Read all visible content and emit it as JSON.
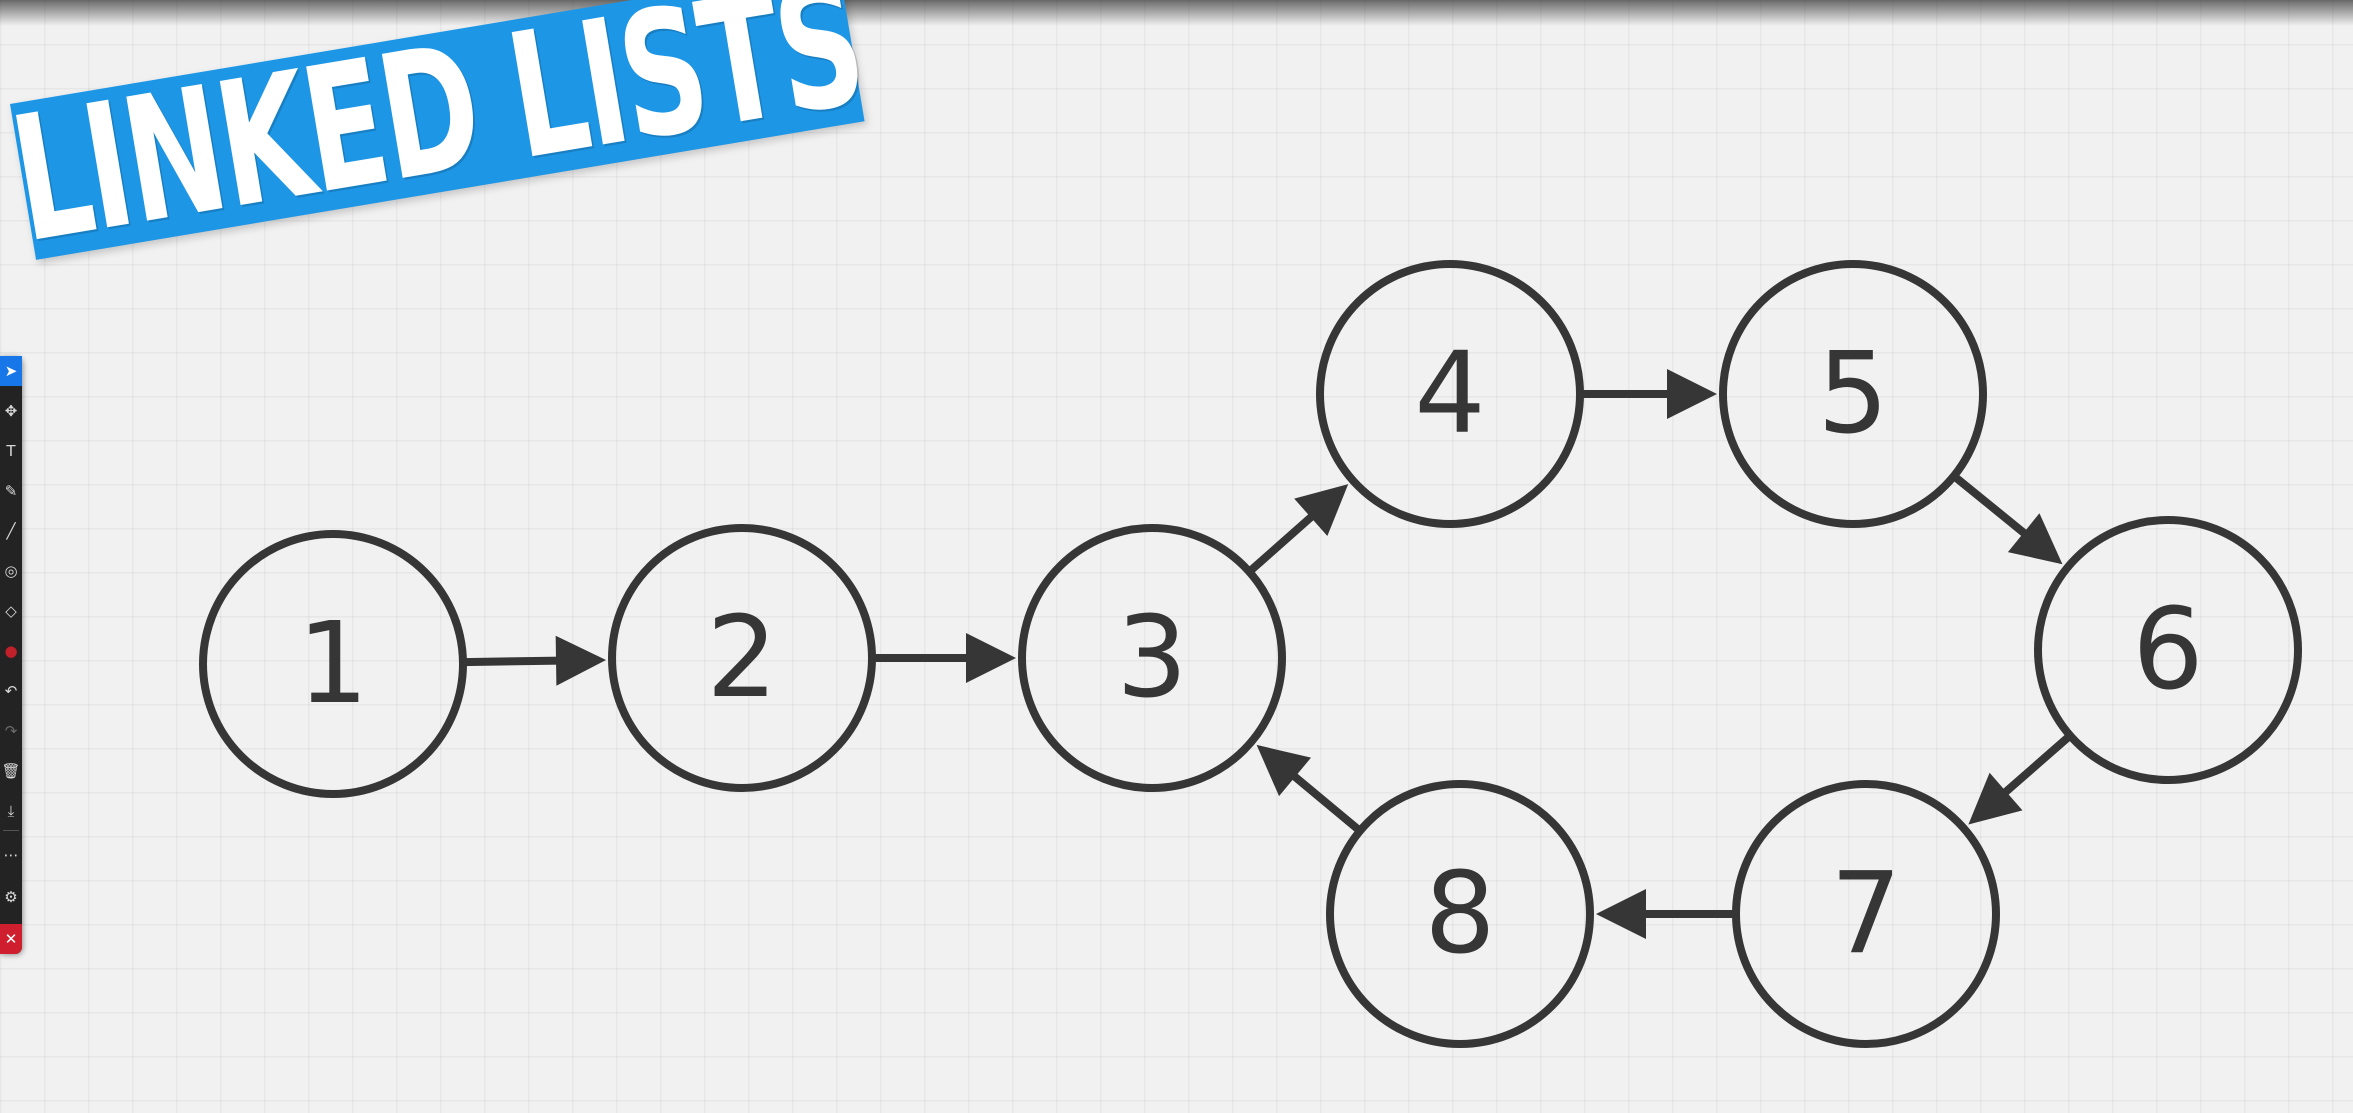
{
  "banner": {
    "title": "LINKED LISTS"
  },
  "toolbar": {
    "tools": [
      {
        "name": "pointer-icon",
        "glyph": "➤",
        "active": true
      },
      {
        "name": "move-icon",
        "glyph": "✥"
      },
      {
        "name": "text-icon",
        "glyph": "T"
      },
      {
        "name": "pen-icon",
        "glyph": "✎"
      },
      {
        "name": "line-icon",
        "glyph": "╱"
      },
      {
        "name": "highlighter-icon",
        "glyph": "◎"
      },
      {
        "name": "eraser-icon",
        "glyph": "◇"
      },
      {
        "name": "color-dot-icon",
        "glyph": "●",
        "color": "#c0202a"
      },
      {
        "name": "undo-icon",
        "glyph": "↶"
      },
      {
        "name": "redo-icon",
        "glyph": "↷",
        "dim": true
      },
      {
        "name": "trash-icon",
        "glyph": "🗑"
      },
      {
        "name": "download-icon",
        "glyph": "⤓"
      },
      {
        "name": "more-icon",
        "glyph": "⋯"
      },
      {
        "name": "settings-icon",
        "glyph": "⚙"
      },
      {
        "name": "close-icon",
        "glyph": "✕",
        "close": true
      }
    ]
  },
  "diagram": {
    "nodes": [
      {
        "id": "1",
        "label": "1"
      },
      {
        "id": "2",
        "label": "2"
      },
      {
        "id": "3",
        "label": "3"
      },
      {
        "id": "4",
        "label": "4"
      },
      {
        "id": "5",
        "label": "5"
      },
      {
        "id": "6",
        "label": "6"
      },
      {
        "id": "7",
        "label": "7"
      },
      {
        "id": "8",
        "label": "8"
      }
    ],
    "edges": [
      {
        "from": "1",
        "to": "2"
      },
      {
        "from": "2",
        "to": "3"
      },
      {
        "from": "3",
        "to": "4"
      },
      {
        "from": "4",
        "to": "5"
      },
      {
        "from": "5",
        "to": "6"
      },
      {
        "from": "6",
        "to": "7"
      },
      {
        "from": "7",
        "to": "8"
      },
      {
        "from": "8",
        "to": "3"
      }
    ]
  }
}
